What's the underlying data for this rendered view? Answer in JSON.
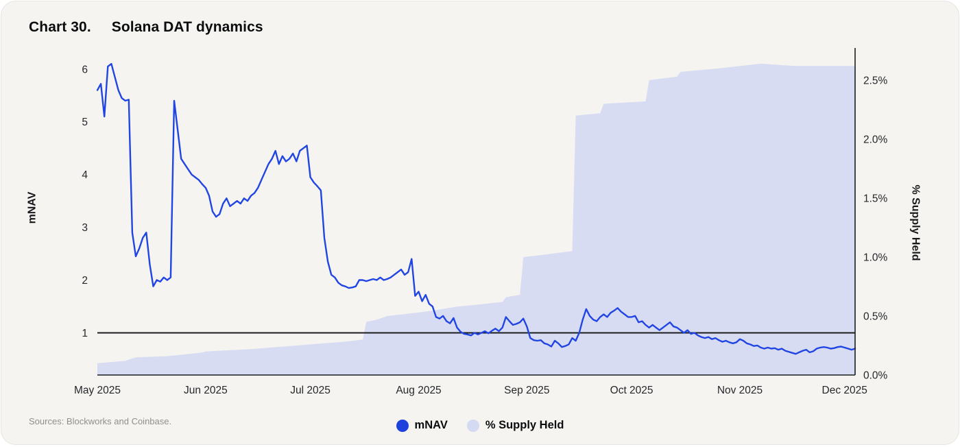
{
  "header": {
    "chart_label": "Chart 30.",
    "title": "Solana DAT dynamics"
  },
  "footer": {
    "sources": "Sources: Blockworks and Coinbase."
  },
  "legend": [
    {
      "label": "mNAV",
      "color": "#1d41dd"
    },
    {
      "label": "% Supply Held",
      "color": "#d4daf2"
    }
  ],
  "colors": {
    "background": "#f5f4f1",
    "line": "#2045e2",
    "area": "#d8dcf3",
    "axis": "#1b1c1e",
    "tick_text": "#26272b"
  },
  "chart_data": {
    "type": "line",
    "title": "Chart 30. Solana DAT dynamics",
    "x_unit": "days since 2025-05-01",
    "x_domain": [
      0,
      217
    ],
    "x_ticks": [
      {
        "day": 0,
        "label": "May 2025"
      },
      {
        "day": 31,
        "label": "Jun 2025"
      },
      {
        "day": 61,
        "label": "Jul 2025"
      },
      {
        "day": 92,
        "label": "Aug 2025"
      },
      {
        "day": 123,
        "label": "Sep 2025"
      },
      {
        "day": 153,
        "label": "Oct 2025"
      },
      {
        "day": 184,
        "label": "Nov 2025"
      },
      {
        "day": 214,
        "label": "Dec 2025"
      }
    ],
    "left_axis": {
      "label": "mNAV",
      "range_min": 0.2,
      "range_max": 6.4,
      "ticks": [
        {
          "value": 1,
          "label": "1"
        },
        {
          "value": 2,
          "label": "2"
        },
        {
          "value": 3,
          "label": "3"
        },
        {
          "value": 4,
          "label": "4"
        },
        {
          "value": 5,
          "label": "5"
        },
        {
          "value": 6,
          "label": "6"
        }
      ]
    },
    "right_axis": {
      "label": "% Supply Held",
      "range_min": 0,
      "range_max": 2.773,
      "ticks": [
        {
          "value": 0,
          "label": "0.0%"
        },
        {
          "value": 0.5,
          "label": "0.5%"
        },
        {
          "value": 1.0,
          "label": "1.0%"
        },
        {
          "value": 1.5,
          "label": "1.5%"
        },
        {
          "value": 2.0,
          "label": "2.0%"
        },
        {
          "value": 2.5,
          "label": "2.5%"
        }
      ]
    },
    "reference_line": {
      "axis": "left",
      "value": 1,
      "color": "#1b1c1e"
    },
    "series": [
      {
        "name": "mNAV",
        "type": "line",
        "axis": "left",
        "color": "#2045e2",
        "points": [
          [
            0,
            5.6
          ],
          [
            1,
            5.72
          ],
          [
            2,
            5.1
          ],
          [
            3,
            6.05
          ],
          [
            4,
            6.1
          ],
          [
            5,
            5.85
          ],
          [
            6,
            5.6
          ],
          [
            7,
            5.45
          ],
          [
            8,
            5.4
          ],
          [
            9,
            5.42
          ],
          [
            10,
            2.9
          ],
          [
            11,
            2.45
          ],
          [
            12,
            2.6
          ],
          [
            13,
            2.8
          ],
          [
            14,
            2.9
          ],
          [
            15,
            2.3
          ],
          [
            16,
            1.88
          ],
          [
            17,
            2.0
          ],
          [
            18,
            1.97
          ],
          [
            19,
            2.05
          ],
          [
            20,
            2.0
          ],
          [
            21,
            2.05
          ],
          [
            22,
            5.4
          ],
          [
            23,
            4.85
          ],
          [
            24,
            4.3
          ],
          [
            25,
            4.2
          ],
          [
            26,
            4.1
          ],
          [
            27,
            4.0
          ],
          [
            28,
            3.95
          ],
          [
            29,
            3.9
          ],
          [
            30,
            3.82
          ],
          [
            31,
            3.75
          ],
          [
            32,
            3.6
          ],
          [
            33,
            3.3
          ],
          [
            34,
            3.2
          ],
          [
            35,
            3.25
          ],
          [
            36,
            3.45
          ],
          [
            37,
            3.55
          ],
          [
            38,
            3.4
          ],
          [
            39,
            3.45
          ],
          [
            40,
            3.5
          ],
          [
            41,
            3.45
          ],
          [
            42,
            3.55
          ],
          [
            43,
            3.5
          ],
          [
            44,
            3.6
          ],
          [
            45,
            3.65
          ],
          [
            46,
            3.75
          ],
          [
            47,
            3.9
          ],
          [
            48,
            4.05
          ],
          [
            49,
            4.2
          ],
          [
            50,
            4.3
          ],
          [
            51,
            4.45
          ],
          [
            52,
            4.2
          ],
          [
            53,
            4.35
          ],
          [
            54,
            4.25
          ],
          [
            55,
            4.3
          ],
          [
            56,
            4.4
          ],
          [
            57,
            4.25
          ],
          [
            58,
            4.45
          ],
          [
            59,
            4.5
          ],
          [
            60,
            4.55
          ],
          [
            61,
            3.95
          ],
          [
            62,
            3.85
          ],
          [
            63,
            3.78
          ],
          [
            64,
            3.7
          ],
          [
            65,
            2.8
          ],
          [
            66,
            2.35
          ],
          [
            67,
            2.1
          ],
          [
            68,
            2.05
          ],
          [
            69,
            1.95
          ],
          [
            70,
            1.9
          ],
          [
            71,
            1.88
          ],
          [
            72,
            1.85
          ],
          [
            73,
            1.86
          ],
          [
            74,
            1.88
          ],
          [
            75,
            2.0
          ],
          [
            76,
            2.0
          ],
          [
            77,
            1.98
          ],
          [
            78,
            2.0
          ],
          [
            79,
            2.02
          ],
          [
            80,
            2.0
          ],
          [
            81,
            2.05
          ],
          [
            82,
            2.0
          ],
          [
            83,
            2.02
          ],
          [
            84,
            2.05
          ],
          [
            85,
            2.1
          ],
          [
            86,
            2.15
          ],
          [
            87,
            2.2
          ],
          [
            88,
            2.1
          ],
          [
            89,
            2.15
          ],
          [
            90,
            2.4
          ],
          [
            91,
            1.7
          ],
          [
            92,
            1.78
          ],
          [
            93,
            1.6
          ],
          [
            94,
            1.72
          ],
          [
            95,
            1.55
          ],
          [
            96,
            1.5
          ],
          [
            97,
            1.3
          ],
          [
            98,
            1.27
          ],
          [
            99,
            1.32
          ],
          [
            100,
            1.22
          ],
          [
            101,
            1.18
          ],
          [
            102,
            1.28
          ],
          [
            103,
            1.1
          ],
          [
            104,
            1.02
          ],
          [
            105,
            0.98
          ],
          [
            106,
            0.97
          ],
          [
            107,
            0.95
          ],
          [
            108,
            1.0
          ],
          [
            109,
            0.97
          ],
          [
            110,
            1.0
          ],
          [
            111,
            1.03
          ],
          [
            112,
            0.99
          ],
          [
            113,
            1.04
          ],
          [
            114,
            1.08
          ],
          [
            115,
            1.03
          ],
          [
            116,
            1.1
          ],
          [
            117,
            1.3
          ],
          [
            118,
            1.22
          ],
          [
            119,
            1.15
          ],
          [
            120,
            1.17
          ],
          [
            121,
            1.2
          ],
          [
            122,
            1.27
          ],
          [
            123,
            1.12
          ],
          [
            124,
            0.9
          ],
          [
            125,
            0.86
          ],
          [
            126,
            0.85
          ],
          [
            127,
            0.86
          ],
          [
            128,
            0.8
          ],
          [
            129,
            0.78
          ],
          [
            130,
            0.74
          ],
          [
            131,
            0.85
          ],
          [
            132,
            0.8
          ],
          [
            133,
            0.73
          ],
          [
            134,
            0.75
          ],
          [
            135,
            0.78
          ],
          [
            136,
            0.9
          ],
          [
            137,
            0.85
          ],
          [
            138,
            1.0
          ],
          [
            139,
            1.25
          ],
          [
            140,
            1.45
          ],
          [
            141,
            1.32
          ],
          [
            142,
            1.25
          ],
          [
            143,
            1.22
          ],
          [
            144,
            1.3
          ],
          [
            145,
            1.35
          ],
          [
            146,
            1.3
          ],
          [
            147,
            1.38
          ],
          [
            148,
            1.42
          ],
          [
            149,
            1.47
          ],
          [
            150,
            1.4
          ],
          [
            151,
            1.35
          ],
          [
            152,
            1.3
          ],
          [
            153,
            1.3
          ],
          [
            154,
            1.32
          ],
          [
            155,
            1.2
          ],
          [
            156,
            1.22
          ],
          [
            157,
            1.15
          ],
          [
            158,
            1.1
          ],
          [
            159,
            1.15
          ],
          [
            160,
            1.1
          ],
          [
            161,
            1.05
          ],
          [
            162,
            1.1
          ],
          [
            163,
            1.15
          ],
          [
            164,
            1.2
          ],
          [
            165,
            1.12
          ],
          [
            166,
            1.1
          ],
          [
            167,
            1.05
          ],
          [
            168,
            1.0
          ],
          [
            169,
            1.05
          ],
          [
            170,
            0.98
          ],
          [
            171,
            1.0
          ],
          [
            172,
            0.95
          ],
          [
            173,
            0.92
          ],
          [
            174,
            0.9
          ],
          [
            175,
            0.92
          ],
          [
            176,
            0.88
          ],
          [
            177,
            0.9
          ],
          [
            178,
            0.86
          ],
          [
            179,
            0.83
          ],
          [
            180,
            0.85
          ],
          [
            181,
            0.82
          ],
          [
            182,
            0.8
          ],
          [
            183,
            0.82
          ],
          [
            184,
            0.88
          ],
          [
            185,
            0.85
          ],
          [
            186,
            0.8
          ],
          [
            187,
            0.78
          ],
          [
            188,
            0.75
          ],
          [
            189,
            0.76
          ],
          [
            190,
            0.72
          ],
          [
            191,
            0.7
          ],
          [
            192,
            0.72
          ],
          [
            193,
            0.7
          ],
          [
            194,
            0.71
          ],
          [
            195,
            0.68
          ],
          [
            196,
            0.7
          ],
          [
            197,
            0.66
          ],
          [
            198,
            0.64
          ],
          [
            199,
            0.62
          ],
          [
            200,
            0.6
          ],
          [
            201,
            0.63
          ],
          [
            202,
            0.66
          ],
          [
            203,
            0.68
          ],
          [
            204,
            0.63
          ],
          [
            205,
            0.65
          ],
          [
            206,
            0.7
          ],
          [
            207,
            0.72
          ],
          [
            208,
            0.73
          ],
          [
            209,
            0.72
          ],
          [
            210,
            0.7
          ],
          [
            211,
            0.71
          ],
          [
            212,
            0.73
          ],
          [
            213,
            0.74
          ],
          [
            214,
            0.72
          ],
          [
            215,
            0.7
          ],
          [
            216,
            0.68
          ],
          [
            217,
            0.7
          ]
        ]
      },
      {
        "name": "% Supply Held",
        "type": "area",
        "axis": "right",
        "color": "#d8dcf3",
        "points": [
          [
            0,
            0.1
          ],
          [
            8,
            0.12
          ],
          [
            11,
            0.15
          ],
          [
            20,
            0.16
          ],
          [
            30,
            0.19
          ],
          [
            31,
            0.2
          ],
          [
            44,
            0.22
          ],
          [
            57,
            0.25
          ],
          [
            61,
            0.26
          ],
          [
            70,
            0.28
          ],
          [
            76,
            0.3
          ],
          [
            77,
            0.45
          ],
          [
            80,
            0.47
          ],
          [
            83,
            0.5
          ],
          [
            92,
            0.53
          ],
          [
            97,
            0.55
          ],
          [
            103,
            0.58
          ],
          [
            110,
            0.6
          ],
          [
            116,
            0.62
          ],
          [
            117,
            0.66
          ],
          [
            121,
            0.68
          ],
          [
            122,
            1.0
          ],
          [
            128,
            1.02
          ],
          [
            133,
            1.04
          ],
          [
            136,
            1.05
          ],
          [
            137,
            2.2
          ],
          [
            144,
            2.22
          ],
          [
            145,
            2.3
          ],
          [
            157,
            2.32
          ],
          [
            158,
            2.5
          ],
          [
            166,
            2.53
          ],
          [
            167,
            2.57
          ],
          [
            178,
            2.6
          ],
          [
            184,
            2.62
          ],
          [
            190,
            2.64
          ],
          [
            200,
            2.62
          ],
          [
            210,
            2.62
          ],
          [
            217,
            2.62
          ]
        ]
      }
    ]
  }
}
